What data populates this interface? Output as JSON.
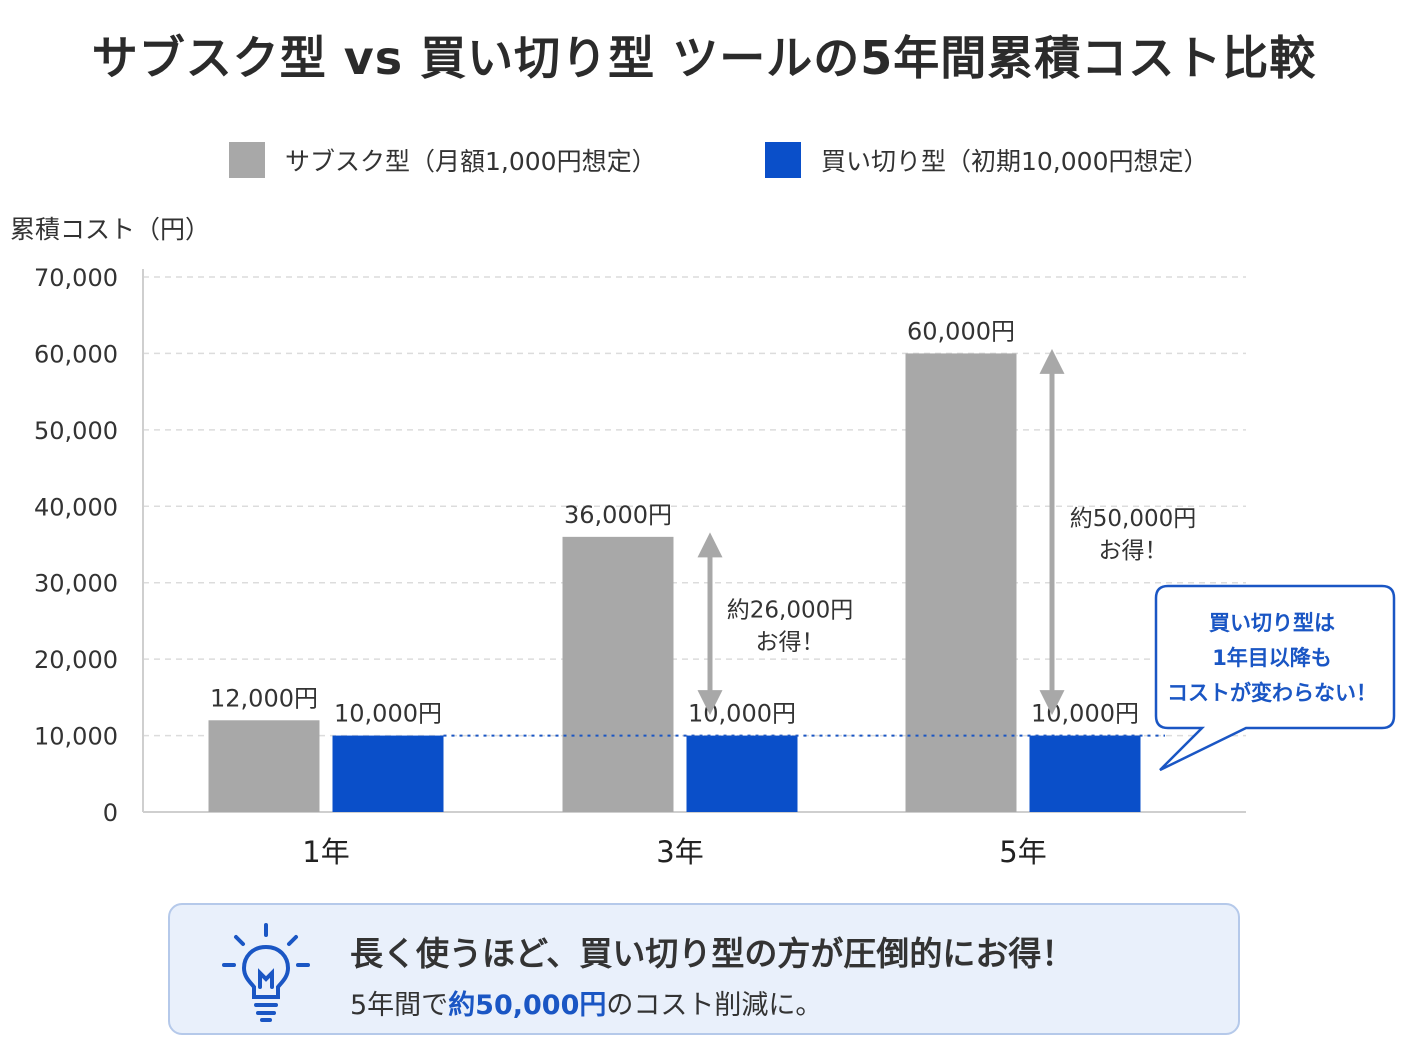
{
  "title": "サブスク型 vs 買い切り型 ツールの5年間累積コスト比較",
  "colors": {
    "subscription": "#a8a8a8",
    "buyout": "#0a4fc9",
    "accent": "#1a56c4",
    "savings_arrow": "#a8a8a8"
  },
  "chart_data": {
    "type": "bar",
    "title": "サブスク型 vs 買い切り型 ツールの5年間累積コスト比較",
    "ylabel": "累積コスト（円）",
    "xlabel": "",
    "ylim": [
      0,
      70000
    ],
    "yticks": [
      0,
      10000,
      20000,
      30000,
      40000,
      50000,
      60000,
      70000
    ],
    "ytick_labels": [
      "0",
      "10,000",
      "20,000",
      "30,000",
      "40,000",
      "50,000",
      "60,000",
      "70,000"
    ],
    "grid": true,
    "legend_position": "top",
    "categories": [
      "1年",
      "3年",
      "5年"
    ],
    "series": [
      {
        "name": "サブスク型（月額1,000円想定）",
        "color": "#a8a8a8",
        "values": [
          12000,
          36000,
          60000
        ],
        "labels": [
          "12,000円",
          "36,000円",
          "60,000円"
        ]
      },
      {
        "name": "買い切り型（初期10,000円想定）",
        "color": "#0a4fc9",
        "values": [
          10000,
          10000,
          10000
        ],
        "labels": [
          "10,000円",
          "10,000円",
          "10,000円"
        ]
      }
    ],
    "annotations": [
      {
        "category": "3年",
        "from": 10000,
        "to": 36000,
        "lines": [
          "約26,000円",
          "お得！"
        ]
      },
      {
        "category": "5年",
        "from": 10000,
        "to": 60000,
        "lines": [
          "約50,000円",
          "お得！"
        ]
      }
    ],
    "reference_line": {
      "value": 10000,
      "style": "dotted"
    },
    "callout": {
      "lines": [
        "買い切り型は",
        "1年目以降も",
        "コストが変わらない！"
      ]
    }
  },
  "summary": {
    "icon": "lightbulb-icon",
    "main": "長く使うほど、買い切り型の方が圧倒的にお得！",
    "sub_prefix": "5年間で",
    "sub_highlight": "約50,000円",
    "sub_suffix": "のコスト削減に。"
  }
}
